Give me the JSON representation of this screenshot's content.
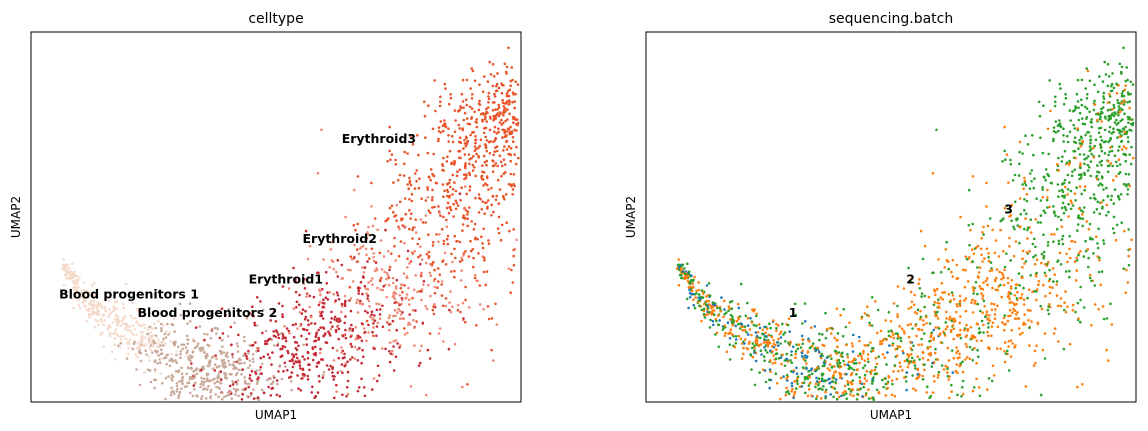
{
  "chart_data": [
    {
      "type": "scatter",
      "title": "celltype",
      "xlabel": "UMAP1",
      "ylabel": "UMAP2",
      "show_ticks": false,
      "legend": "on data",
      "categories": [
        {
          "name": "Blood progenitors 1",
          "color": "#f5dbcc",
          "label_at": [
            0.2,
            0.28
          ]
        },
        {
          "name": "Blood progenitors 2",
          "color": "#c9aa99",
          "label_at": [
            0.36,
            0.23
          ]
        },
        {
          "name": "Erythroid1",
          "color": "#c62a36",
          "label_at": [
            0.52,
            0.32
          ]
        },
        {
          "name": "Erythroid2",
          "color": "#ef8a78",
          "label_at": [
            0.63,
            0.43
          ]
        },
        {
          "name": "Erythroid3",
          "color": "#e9542a",
          "label_at": [
            0.71,
            0.7
          ]
        }
      ]
    },
    {
      "type": "scatter",
      "title": "sequencing.batch",
      "xlabel": "UMAP1",
      "ylabel": "UMAP2",
      "show_ticks": false,
      "legend": "on data",
      "categories": [
        {
          "name": "1",
          "color": "#1f77b4",
          "label_at": [
            0.3,
            0.23
          ]
        },
        {
          "name": "2",
          "color": "#ff7f0e",
          "label_at": [
            0.54,
            0.32
          ]
        },
        {
          "name": "3",
          "color": "#2ca02c",
          "label_at": [
            0.74,
            0.51
          ]
        }
      ]
    }
  ]
}
